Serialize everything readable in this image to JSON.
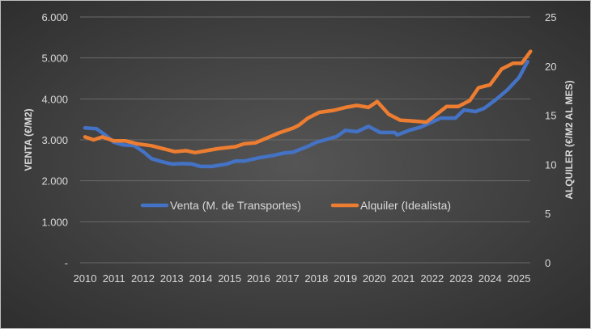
{
  "chart_data": {
    "type": "line",
    "title": "",
    "xlabel": "",
    "ylabel": "VENTA (€/M2)",
    "y2label": "ALQUILER (€/M2 AL MES)",
    "xlim": [
      2010,
      2025
    ],
    "ylim": [
      0,
      6000
    ],
    "y2lim": [
      0,
      25
    ],
    "x_ticks": [
      "2010",
      "2011",
      "2012",
      "2013",
      "2014",
      "2015",
      "2016",
      "2017",
      "2018",
      "2019",
      "2020",
      "2021",
      "2022",
      "2023",
      "2024",
      "2025"
    ],
    "y_ticks": [
      "-",
      "1.000",
      "2.000",
      "3.000",
      "4.000",
      "5.000",
      "6.000"
    ],
    "y2_ticks": [
      "0",
      "5",
      "10",
      "15",
      "20",
      "25"
    ],
    "grid": true,
    "legend": "bottom-center",
    "series": [
      {
        "name": "Venta (M. de Transportes)",
        "axis": "left",
        "color": "#4472c4",
        "x": [
          2010.0,
          2010.4,
          2010.7,
          2011.0,
          2011.3,
          2011.7,
          2012.0,
          2012.3,
          2012.7,
          2013.0,
          2013.4,
          2013.7,
          2014.0,
          2014.4,
          2014.9,
          2015.2,
          2015.5,
          2016.0,
          2016.5,
          2016.9,
          2017.2,
          2017.7,
          2018.0,
          2018.3,
          2018.7,
          2019.0,
          2019.4,
          2019.8,
          2020.2,
          2020.7,
          2020.8,
          2021.2,
          2021.6,
          2022.1,
          2022.3,
          2022.8,
          2023.1,
          2023.5,
          2023.8,
          2024.2,
          2024.6,
          2025.0,
          2025.3
        ],
        "y": [
          3290,
          3270,
          3120,
          2940,
          2880,
          2860,
          2720,
          2540,
          2460,
          2410,
          2420,
          2410,
          2350,
          2350,
          2410,
          2480,
          2480,
          2560,
          2620,
          2680,
          2700,
          2840,
          2940,
          3000,
          3080,
          3230,
          3200,
          3330,
          3180,
          3180,
          3120,
          3230,
          3310,
          3470,
          3530,
          3530,
          3730,
          3690,
          3770,
          3980,
          4220,
          4520,
          4910
        ]
      },
      {
        "name": "Alquiler (Idealista)",
        "axis": "right",
        "color": "#ed7d31",
        "x": [
          2010.0,
          2010.3,
          2010.6,
          2011.0,
          2011.4,
          2011.8,
          2012.3,
          2012.7,
          2013.1,
          2013.5,
          2013.8,
          2014.2,
          2014.6,
          2015.2,
          2015.5,
          2015.9,
          2016.3,
          2016.7,
          2017.2,
          2017.4,
          2017.7,
          2018.1,
          2018.6,
          2019.0,
          2019.4,
          2019.8,
          2020.1,
          2020.5,
          2020.9,
          2021.4,
          2021.8,
          2022.2,
          2022.5,
          2022.9,
          2023.3,
          2023.6,
          2024.0,
          2024.4,
          2024.8,
          2025.1,
          2025.4
        ],
        "y": [
          12.8,
          12.5,
          12.8,
          12.4,
          12.4,
          12.1,
          11.9,
          11.6,
          11.3,
          11.4,
          11.2,
          11.4,
          11.6,
          11.8,
          12.1,
          12.2,
          12.7,
          13.2,
          13.7,
          14.0,
          14.7,
          15.3,
          15.5,
          15.8,
          16.0,
          15.8,
          16.4,
          15.1,
          14.5,
          14.4,
          14.3,
          15.2,
          15.9,
          15.9,
          16.5,
          17.8,
          18.1,
          19.7,
          20.3,
          20.3,
          21.5
        ]
      }
    ]
  }
}
